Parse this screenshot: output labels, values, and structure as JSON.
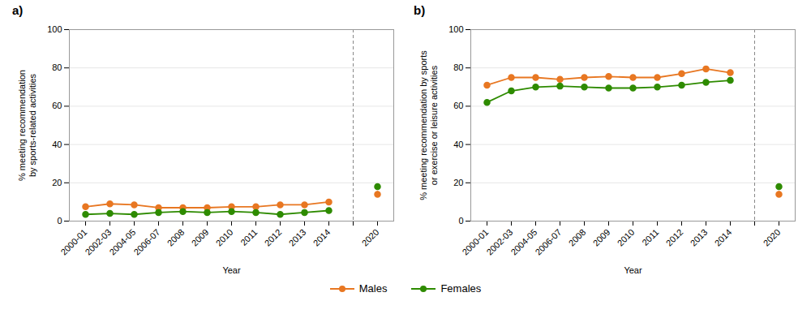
{
  "chart_data": [
    {
      "type": "line",
      "title": "a)",
      "xlabel": "Year",
      "ylabel": "% meeting recommendation\nby sports-related activities",
      "categories": [
        "2000-01",
        "2002-03",
        "2004-05",
        "2006-07",
        "2008",
        "2009",
        "2010",
        "2011",
        "2012",
        "2013",
        "2014",
        null,
        "2020"
      ],
      "series": [
        {
          "name": "Males",
          "color": "#E87722",
          "marker": "circle",
          "values": [
            7.5,
            9.0,
            8.5,
            7.0,
            7.0,
            7.0,
            7.5,
            7.5,
            8.5,
            8.5,
            10.0,
            null,
            14.0
          ],
          "errors": [
            null,
            null,
            null,
            null,
            null,
            null,
            null,
            null,
            null,
            null,
            null,
            null,
            1.5
          ]
        },
        {
          "name": "Females",
          "color": "#2E8B00",
          "marker": "circle",
          "values": [
            3.5,
            4.0,
            3.5,
            4.5,
            5.0,
            4.5,
            5.0,
            4.5,
            3.5,
            4.5,
            5.5,
            null,
            18.0
          ],
          "errors": [
            null,
            null,
            null,
            null,
            null,
            null,
            null,
            null,
            null,
            null,
            null,
            null,
            1.5
          ]
        }
      ],
      "ylim": [
        0,
        100
      ],
      "yticks": [
        0,
        20,
        40,
        60,
        80,
        100
      ],
      "grid": true,
      "legend": "bottom"
    },
    {
      "type": "line",
      "title": "b)",
      "xlabel": "Year",
      "ylabel": "% meeting recommendation by sports\nor exercise or leisure activities",
      "categories": [
        "2000-01",
        "2002-03",
        "2004-05",
        "2006-07",
        "2008",
        "2009",
        "2010",
        "2011",
        "2012",
        "2013",
        "2014",
        null,
        "2020"
      ],
      "series": [
        {
          "name": "Males",
          "color": "#E87722",
          "marker": "circle",
          "values": [
            71.0,
            75.0,
            75.0,
            74.0,
            75.0,
            75.5,
            75.0,
            75.0,
            77.0,
            79.5,
            77.5,
            null,
            14.0
          ],
          "errors": [
            null,
            null,
            null,
            null,
            null,
            null,
            null,
            null,
            null,
            null,
            null,
            null,
            1.5
          ]
        },
        {
          "name": "Females",
          "color": "#2E8B00",
          "marker": "circle",
          "values": [
            62.0,
            68.0,
            70.0,
            70.5,
            70.0,
            69.5,
            69.5,
            70.0,
            71.0,
            72.5,
            73.5,
            null,
            18.0
          ],
          "errors": [
            null,
            null,
            null,
            null,
            null,
            null,
            null,
            null,
            null,
            null,
            null,
            null,
            1.5
          ]
        }
      ],
      "ylim": [
        0,
        100
      ],
      "yticks": [
        0,
        20,
        40,
        60,
        80,
        100
      ],
      "grid": true,
      "legend": "bottom"
    }
  ]
}
